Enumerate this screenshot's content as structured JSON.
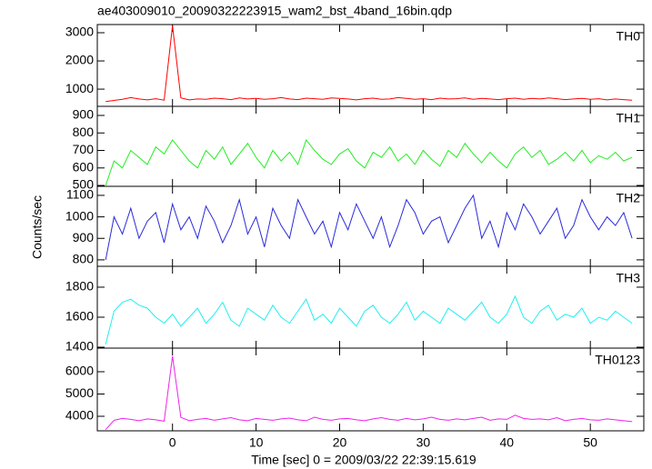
{
  "chart_data": [
    {
      "type": "line",
      "title": "ae403009010_20090322223915_wam2_bst_4band_16bin.qdp",
      "x": [
        -8,
        -7,
        -6,
        -5,
        -4,
        -3,
        -2,
        -1,
        0,
        1,
        2,
        3,
        4,
        5,
        6,
        7,
        8,
        9,
        10,
        11,
        12,
        13,
        14,
        15,
        16,
        17,
        18,
        19,
        20,
        21,
        22,
        23,
        24,
        25,
        26,
        27,
        28,
        29,
        30,
        31,
        32,
        33,
        34,
        35,
        36,
        37,
        38,
        39,
        40,
        41,
        42,
        43,
        44,
        45,
        46,
        47,
        48,
        49,
        50,
        51,
        52,
        53,
        54,
        55
      ],
      "series": [
        {
          "name": "TH0",
          "color": "#ff0000",
          "values": [
            560,
            600,
            640,
            700,
            650,
            620,
            660,
            610,
            3250,
            690,
            620,
            650,
            640,
            680,
            660,
            630,
            690,
            650,
            670,
            640,
            660,
            700,
            650,
            630,
            680,
            660,
            640,
            690,
            670,
            650,
            620,
            660,
            680,
            640,
            650,
            700,
            670,
            640,
            660,
            630,
            680,
            650,
            660,
            690,
            640,
            670,
            650,
            630,
            660,
            680,
            640,
            670,
            650,
            690,
            660,
            630,
            650,
            670,
            640,
            660,
            620,
            650,
            630,
            610
          ]
        }
      ],
      "xlim": [
        -9,
        56.4
      ],
      "xticks": [
        0,
        10,
        20,
        30,
        40,
        50
      ],
      "ylim": [
        390,
        3290
      ],
      "yticks": [
        1000,
        2000,
        3000
      ]
    },
    {
      "type": "line",
      "x": [
        -8,
        -7,
        -6,
        -5,
        -4,
        -3,
        -2,
        -1,
        0,
        1,
        2,
        3,
        4,
        5,
        6,
        7,
        8,
        9,
        10,
        11,
        12,
        13,
        14,
        15,
        16,
        17,
        18,
        19,
        20,
        21,
        22,
        23,
        24,
        25,
        26,
        27,
        28,
        29,
        30,
        31,
        32,
        33,
        34,
        35,
        36,
        37,
        38,
        39,
        40,
        41,
        42,
        43,
        44,
        45,
        46,
        47,
        48,
        49,
        50,
        51,
        52,
        53,
        54,
        55
      ],
      "series": [
        {
          "name": "TH1",
          "color": "#22ee22",
          "values": [
            500,
            640,
            600,
            700,
            660,
            620,
            720,
            680,
            760,
            700,
            640,
            600,
            700,
            650,
            720,
            620,
            680,
            740,
            660,
            600,
            700,
            640,
            690,
            620,
            760,
            700,
            650,
            620,
            680,
            710,
            640,
            600,
            690,
            660,
            720,
            640,
            680,
            620,
            700,
            650,
            610,
            700,
            660,
            740,
            680,
            630,
            690,
            640,
            600,
            680,
            720,
            660,
            700,
            620,
            650,
            690,
            640,
            700,
            630,
            670,
            650,
            690,
            640,
            660
          ]
        }
      ],
      "xlim": [
        -9,
        56.4
      ],
      "xticks": [
        0,
        10,
        20,
        30,
        40,
        50
      ],
      "ylim": [
        495,
        952
      ],
      "yticks": [
        500,
        600,
        700,
        800,
        900
      ]
    },
    {
      "type": "line",
      "ylabel": "Counts/sec",
      "x": [
        -8,
        -7,
        -6,
        -5,
        -4,
        -3,
        -2,
        -1,
        0,
        1,
        2,
        3,
        4,
        5,
        6,
        7,
        8,
        9,
        10,
        11,
        12,
        13,
        14,
        15,
        16,
        17,
        18,
        19,
        20,
        21,
        22,
        23,
        24,
        25,
        26,
        27,
        28,
        29,
        30,
        31,
        32,
        33,
        34,
        35,
        36,
        37,
        38,
        39,
        40,
        41,
        42,
        43,
        44,
        45,
        46,
        47,
        48,
        49,
        50,
        51,
        52,
        53,
        54,
        55
      ],
      "series": [
        {
          "name": "TH2",
          "color": "#2a2ad8",
          "values": [
            800,
            1000,
            920,
            1040,
            900,
            980,
            1020,
            880,
            1060,
            940,
            1000,
            900,
            1050,
            980,
            880,
            960,
            1080,
            920,
            1000,
            860,
            1040,
            960,
            900,
            1080,
            1000,
            920,
            980,
            860,
            1020,
            940,
            1060,
            980,
            900,
            1000,
            860,
            960,
            1080,
            1020,
            920,
            980,
            1000,
            880,
            960,
            1040,
            1100,
            900,
            980,
            860,
            1020,
            940,
            1060,
            1000,
            920,
            980,
            1040,
            900,
            960,
            1080,
            1000,
            940,
            1000,
            960,
            1020,
            900
          ]
        }
      ],
      "xlim": [
        -9,
        56.4
      ],
      "xticks": [
        0,
        10,
        20,
        30,
        40,
        50
      ],
      "ylim": [
        770,
        1142
      ],
      "yticks": [
        800,
        900,
        1000,
        1100
      ]
    },
    {
      "type": "line",
      "x": [
        -8,
        -7,
        -6,
        -5,
        -4,
        -3,
        -2,
        -1,
        0,
        1,
        2,
        3,
        4,
        5,
        6,
        7,
        8,
        9,
        10,
        11,
        12,
        13,
        14,
        15,
        16,
        17,
        18,
        19,
        20,
        21,
        22,
        23,
        24,
        25,
        26,
        27,
        28,
        29,
        30,
        31,
        32,
        33,
        34,
        35,
        36,
        37,
        38,
        39,
        40,
        41,
        42,
        43,
        44,
        45,
        46,
        47,
        48,
        49,
        50,
        51,
        52,
        53,
        54,
        55
      ],
      "series": [
        {
          "name": "TH3",
          "color": "#22eeee",
          "values": [
            1420,
            1640,
            1700,
            1720,
            1680,
            1660,
            1600,
            1560,
            1620,
            1540,
            1600,
            1660,
            1560,
            1620,
            1700,
            1580,
            1540,
            1660,
            1620,
            1580,
            1680,
            1600,
            1560,
            1640,
            1720,
            1580,
            1620,
            1560,
            1660,
            1600,
            1540,
            1640,
            1680,
            1600,
            1560,
            1620,
            1700,
            1580,
            1640,
            1600,
            1560,
            1660,
            1620,
            1580,
            1640,
            1700,
            1600,
            1560,
            1620,
            1740,
            1600,
            1560,
            1640,
            1680,
            1580,
            1620,
            1600,
            1660,
            1560,
            1600,
            1580,
            1640,
            1600,
            1560
          ]
        }
      ],
      "xlim": [
        -9,
        56.4
      ],
      "xticks": [
        0,
        10,
        20,
        30,
        40,
        50
      ],
      "ylim": [
        1394,
        1939
      ],
      "yticks": [
        1400,
        1600,
        1800
      ]
    },
    {
      "type": "line",
      "xlabel": "Time [sec] 0 = 2009/03/22 22:39:15.619",
      "x": [
        -8,
        -7,
        -6,
        -5,
        -4,
        -3,
        -2,
        -1,
        0,
        1,
        2,
        3,
        4,
        5,
        6,
        7,
        8,
        9,
        10,
        11,
        12,
        13,
        14,
        15,
        16,
        17,
        18,
        19,
        20,
        21,
        22,
        23,
        24,
        25,
        26,
        27,
        28,
        29,
        30,
        31,
        32,
        33,
        34,
        35,
        36,
        37,
        38,
        39,
        40,
        41,
        42,
        43,
        44,
        45,
        46,
        47,
        48,
        49,
        50,
        51,
        52,
        53,
        54,
        55
      ],
      "series": [
        {
          "name": "TH0123",
          "color": "#ee22ee",
          "values": [
            3400,
            3820,
            3900,
            3860,
            3800,
            3880,
            3840,
            3780,
            6700,
            3950,
            3800,
            3860,
            3900,
            3820,
            3880,
            3940,
            3840,
            3800,
            3900,
            3860,
            3820,
            3880,
            3920,
            3840,
            3800,
            3960,
            3860,
            3820,
            3880,
            3900,
            3840,
            3800,
            3880,
            3940,
            3860,
            3820,
            3900,
            3840,
            3880,
            3960,
            3860,
            3820,
            3880,
            3840,
            3900,
            3960,
            3820,
            3880,
            3860,
            4050,
            3900,
            3860,
            3880,
            3840,
            3940,
            3800,
            3860,
            3900,
            3840,
            3820,
            3880,
            3840,
            3800,
            3760
          ]
        }
      ],
      "xlim": [
        -9,
        56.4
      ],
      "xticks": [
        0,
        10,
        20,
        30,
        40,
        50
      ],
      "ylim": [
        3347,
        7060
      ],
      "yticks": [
        4000,
        5000,
        6000
      ]
    }
  ]
}
